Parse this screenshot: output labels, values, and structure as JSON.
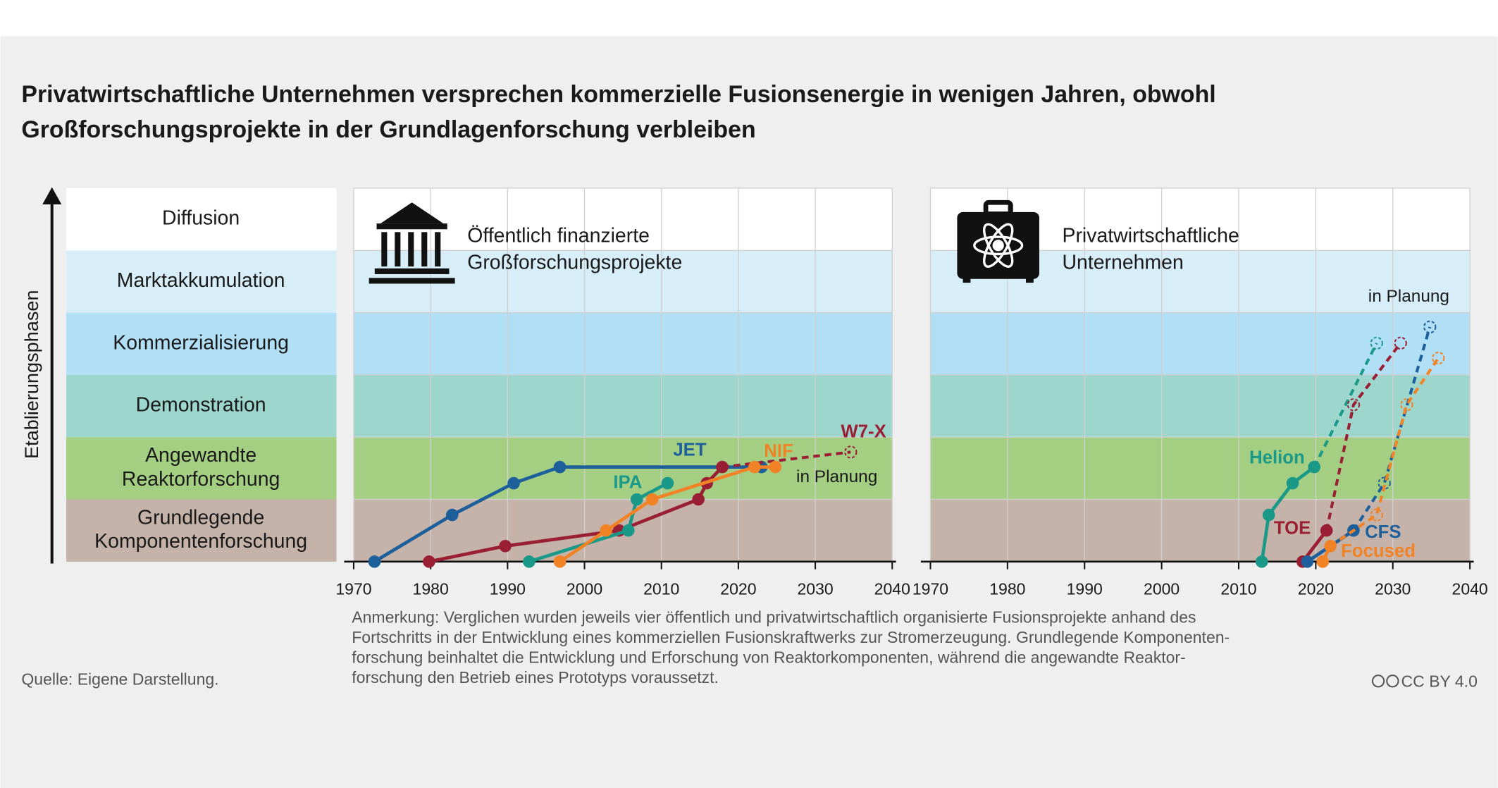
{
  "title": [
    "Privatwirtschaftliche Unternehmen versprechen kommerzielle Fusionsenergie in wenigen Jahren, obwohl",
    "Großforschungsprojekte in der Grundlagenforschung verbleiben"
  ],
  "y_axis_label": "Etablierungsphasen",
  "phases": [
    {
      "label": [
        "Grundlegende",
        "Komponentenforschung"
      ],
      "color": "#c5b3a9"
    },
    {
      "label": [
        "Angewandte",
        "Reaktorforschung"
      ],
      "color": "#a4cf83"
    },
    {
      "label": [
        "Demonstration"
      ],
      "color": "#9dd6cc"
    },
    {
      "label": [
        "Kommerzialisierung"
      ],
      "color": "#b1dff5"
    },
    {
      "label": [
        "Marktakkumulation"
      ],
      "color": "#d7eef9"
    },
    {
      "label": [
        "Diffusion"
      ],
      "color": "#ffffff"
    }
  ],
  "chart_data": [
    {
      "type": "line",
      "title": [
        "Öffentlich finanzierte",
        "Großforschungsprojekte"
      ],
      "annotation": "in Planung",
      "xlim": [
        1970,
        2040
      ],
      "xticks": [
        1970,
        1980,
        1990,
        2000,
        2010,
        2020,
        2030,
        2040
      ],
      "ylim": [
        0,
        6
      ],
      "yticks": [
        0,
        1,
        2,
        3,
        4,
        5,
        6
      ],
      "grid": true,
      "series": [
        {
          "name": "JET",
          "color": "#1d5f9b",
          "x": [
            1972.7,
            1982.8,
            1990.8,
            1996.8,
            2023
          ],
          "values": [
            0,
            0.75,
            1.26,
            1.52,
            1.52
          ]
        },
        {
          "name": "W7-X",
          "color": "#9a1f35",
          "x": [
            1979.8,
            1989.7,
            2004.5,
            2014.8,
            2015.9,
            2017.9
          ],
          "values": [
            0,
            0.25,
            0.5,
            1.0,
            1.26,
            1.52
          ],
          "planned": {
            "x": [
              2034.6
            ],
            "values": [
              1.76
            ]
          }
        },
        {
          "name": "IPA",
          "color": "#1a9988",
          "x": [
            1992.8,
            2005.7,
            2006.8,
            2010.8
          ],
          "values": [
            0,
            0.5,
            1.0,
            1.26
          ]
        },
        {
          "name": "NIF",
          "color": "#f18225",
          "x": [
            1996.8,
            2002.8,
            2008.8,
            2022.1,
            2024.8
          ],
          "values": [
            0,
            0.5,
            1.0,
            1.52,
            1.52
          ]
        }
      ]
    },
    {
      "type": "line",
      "title": [
        "Privatwirtschaftliche",
        "Unternehmen"
      ],
      "annotation": "in Planung",
      "xlim": [
        1970,
        2040
      ],
      "xticks": [
        1970,
        1980,
        1990,
        2000,
        2010,
        2020,
        2030,
        2040
      ],
      "ylim": [
        0,
        6
      ],
      "yticks": [
        0,
        1,
        2,
        3,
        4,
        5,
        6
      ],
      "grid": true,
      "series": [
        {
          "name": "Helion",
          "color": "#1a9988",
          "x": [
            2013.0,
            2013.9,
            2017.0,
            2019.8
          ],
          "values": [
            0,
            0.75,
            1.26,
            1.52
          ],
          "planned": {
            "x": [
              2027.9
            ],
            "values": [
              3.51
            ]
          }
        },
        {
          "name": "TOE",
          "color": "#9a1f35",
          "x": [
            2018.3,
            2021.4
          ],
          "values": [
            0,
            0.5
          ],
          "planned": {
            "x": [
              2024.9,
              2031.0
            ],
            "values": [
              2.52,
              3.51
            ]
          }
        },
        {
          "name": "CFS",
          "color": "#1d5f9b",
          "x": [
            2018.9,
            2024.9
          ],
          "values": [
            0,
            0.5
          ],
          "planned": {
            "x": [
              2028.9,
              2034.8
            ],
            "values": [
              1.26,
              3.77
            ]
          }
        },
        {
          "name": "Focused",
          "color": "#f18225",
          "x": [
            2020.9,
            2021.9
          ],
          "values": [
            0,
            0.25
          ],
          "planned": {
            "x": [
              2027.9,
              2031.8,
              2035.9
            ],
            "values": [
              0.75,
              2.52,
              3.27
            ]
          }
        }
      ]
    }
  ],
  "note": [
    "Anmerkung: Verglichen wurden jeweils vier öffentlich und privatwirtschaftlich organisierte Fusionsprojekte anhand des",
    "Fortschritts in der Entwicklung eines kommerziellen Fusionskraftwerks zur Stromerzeugung. Grundlegende  Komponenten-",
    "forschung beinhaltet die Entwicklung und Erforschung von Reaktorkomponenten, während die angewandte Reaktor-",
    "forschung den Betrieb eines Prototyps voraussetzt."
  ],
  "source": "Quelle: Eigene Darstellung.",
  "license": "CC BY 4.0"
}
